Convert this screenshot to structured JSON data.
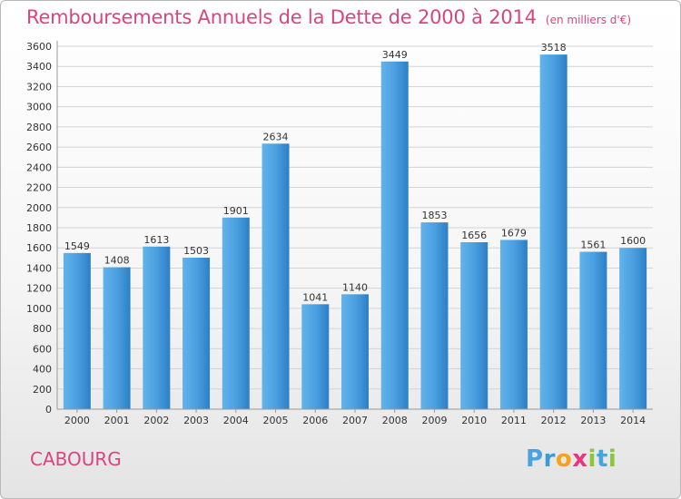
{
  "chart_data": {
    "type": "bar",
    "title": "Remboursements Annuels de la Dette de 2000 à 2014",
    "subtitle": "(en milliers d'€)",
    "categories": [
      "2000",
      "2001",
      "2002",
      "2003",
      "2004",
      "2005",
      "2006",
      "2007",
      "2008",
      "2009",
      "2010",
      "2011",
      "2012",
      "2013",
      "2014"
    ],
    "values": [
      1549,
      1408,
      1613,
      1503,
      1901,
      2634,
      1041,
      1140,
      3449,
      1853,
      1656,
      1679,
      3518,
      1561,
      1600
    ],
    "ylim": [
      0,
      3600
    ],
    "ytick_step": 200,
    "grid": true,
    "bar_color": "#3a8fd6"
  },
  "footer": {
    "city": "CABOURG",
    "brand_letters": [
      {
        "ch": "P",
        "color": "#4aa3df"
      },
      {
        "ch": "r",
        "color": "#3b9ad8"
      },
      {
        "ch": "o",
        "color": "#f7a21b"
      },
      {
        "ch": "x",
        "color": "#e8367f"
      },
      {
        "ch": "i",
        "color": "#8cc63f"
      },
      {
        "ch": "t",
        "color": "#4aa3df"
      },
      {
        "ch": "i",
        "color": "#8cc63f"
      }
    ]
  }
}
